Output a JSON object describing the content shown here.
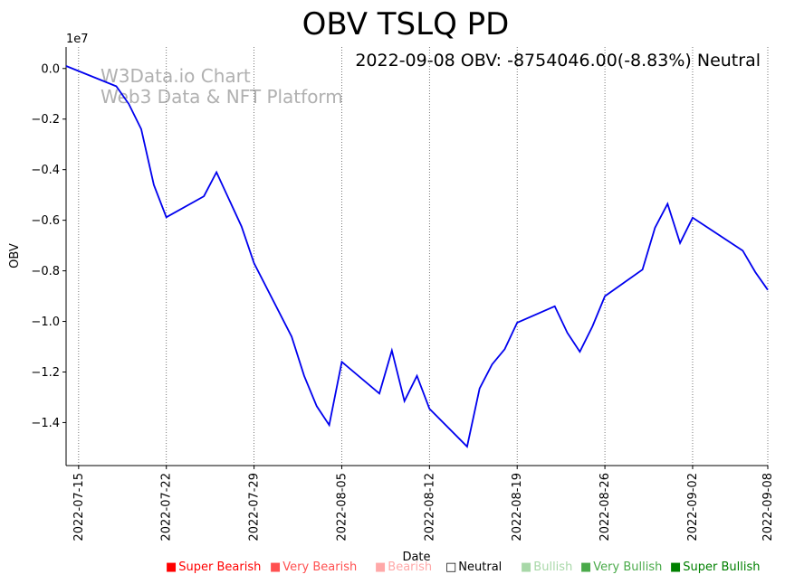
{
  "chart_data": {
    "type": "line",
    "title": "OBV TSLQ PD",
    "annotation": "2022-09-08 OBV: -8754046.00(-8.83%) Neutral",
    "watermark": [
      "W3Data.io Chart",
      "Web3 Data & NFT Platform"
    ],
    "xlabel": "Date",
    "ylabel": "OBV",
    "y_multiplier_label": "1e7",
    "ylim": [
      -15700000,
      850000
    ],
    "xlim": [
      "2022-07-14",
      "2022-09-08"
    ],
    "y_ticks": [
      0,
      -2000000,
      -4000000,
      -6000000,
      -8000000,
      -10000000,
      -12000000,
      -14000000
    ],
    "y_tick_labels": [
      "0.0",
      "−0.2",
      "−0.4",
      "−0.6",
      "−0.8",
      "−1.0",
      "−1.2",
      "−1.4"
    ],
    "x_ticks": [
      "2022-07-15",
      "2022-07-22",
      "2022-07-29",
      "2022-08-05",
      "2022-08-12",
      "2022-08-19",
      "2022-08-26",
      "2022-09-02",
      "2022-09-08"
    ],
    "series": [
      {
        "name": "OBV",
        "color": "#0000ee",
        "points": [
          [
            "2022-07-14",
            100000
          ],
          [
            "2022-07-18",
            -700000
          ],
          [
            "2022-07-19",
            -1400000
          ],
          [
            "2022-07-20",
            -2400000
          ],
          [
            "2022-07-21",
            -4600000
          ],
          [
            "2022-07-22",
            -5880000
          ],
          [
            "2022-07-25",
            -5050000
          ],
          [
            "2022-07-26",
            -4100000
          ],
          [
            "2022-07-28",
            -6250000
          ],
          [
            "2022-07-29",
            -7700000
          ],
          [
            "2022-08-01",
            -10600000
          ],
          [
            "2022-08-02",
            -12150000
          ],
          [
            "2022-08-03",
            -13350000
          ],
          [
            "2022-08-04",
            -14100000
          ],
          [
            "2022-08-05",
            -11600000
          ],
          [
            "2022-08-08",
            -12850000
          ],
          [
            "2022-08-09",
            -11150000
          ],
          [
            "2022-08-10",
            -13150000
          ],
          [
            "2022-08-11",
            -12150000
          ],
          [
            "2022-08-12",
            -13450000
          ],
          [
            "2022-08-15",
            -14950000
          ],
          [
            "2022-08-16",
            -12650000
          ],
          [
            "2022-08-17",
            -11700000
          ],
          [
            "2022-08-18",
            -11100000
          ],
          [
            "2022-08-19",
            -10050000
          ],
          [
            "2022-08-22",
            -9400000
          ],
          [
            "2022-08-23",
            -10450000
          ],
          [
            "2022-08-24",
            -11200000
          ],
          [
            "2022-08-25",
            -10200000
          ],
          [
            "2022-08-26",
            -9000000
          ],
          [
            "2022-08-29",
            -7950000
          ],
          [
            "2022-08-30",
            -6300000
          ],
          [
            "2022-08-31",
            -5350000
          ],
          [
            "2022-09-01",
            -6900000
          ],
          [
            "2022-09-02",
            -5900000
          ],
          [
            "2022-09-06",
            -7200000
          ],
          [
            "2022-09-07",
            -8050000
          ],
          [
            "2022-09-08",
            -8754046
          ]
        ]
      }
    ]
  },
  "legend": [
    {
      "label": "Super Bearish",
      "color": "#ff0000",
      "symbol": "■"
    },
    {
      "label": "Very Bearish",
      "color": "#ff5050",
      "symbol": "■"
    },
    {
      "label": "Bearish",
      "color": "#ffa8a8",
      "symbol": "■"
    },
    {
      "label": "Neutral",
      "color": "#000000",
      "symbol": "□"
    },
    {
      "label": "Bullish",
      "color": "#a8d8a8",
      "symbol": "■"
    },
    {
      "label": "Very Bullish",
      "color": "#4aaa4a",
      "symbol": "■"
    },
    {
      "label": "Super Bullish",
      "color": "#008000",
      "symbol": "■"
    }
  ]
}
